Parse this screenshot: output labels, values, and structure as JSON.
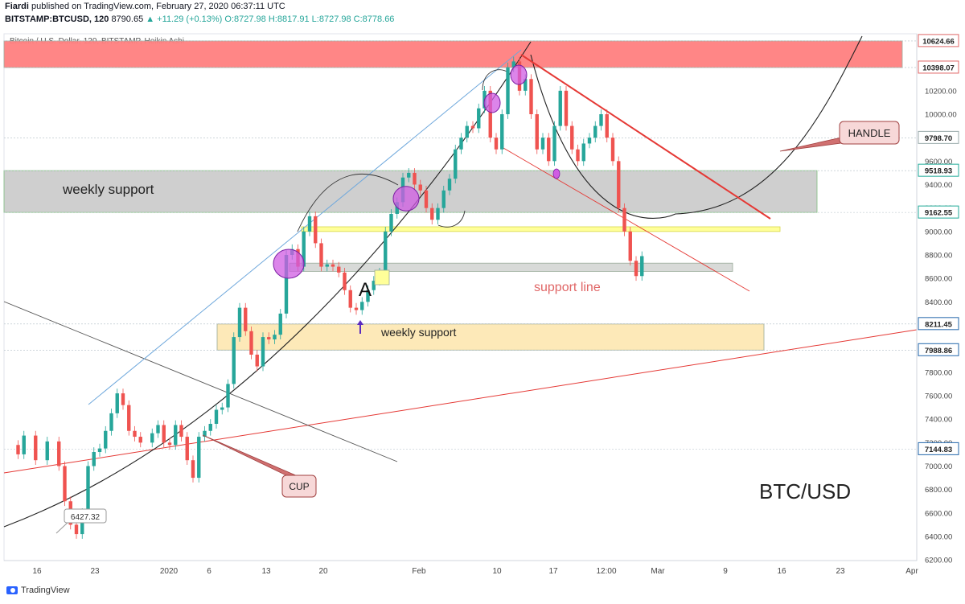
{
  "header": {
    "author": "Fiardi",
    "published": "published on TradingView.com, February 27, 2020 06:37:11 UTC",
    "symbol": "BITSTAMP:BTCUSD, 120",
    "last": "8790.65",
    "change_arrow": "▲",
    "change": "+11.29 (+0.13%)",
    "ohlc": "O:8727.98 H:8817.91 L:8727.98 C:8778.66"
  },
  "footer": {
    "brand": "TradingView"
  },
  "chart_data": {
    "type": "line",
    "series_title": "Bitcoin / U.S. Dollar, 120, BITSTAMP, Heikin Ashi",
    "x_tick_labels": [
      "16",
      "23",
      "2020",
      "6",
      "13",
      "20",
      "Feb",
      "10",
      "17",
      "12:00",
      "Mar",
      "9",
      "16",
      "23",
      "Apr"
    ],
    "y_tick_labels": [
      6200,
      6400,
      6600,
      6800,
      7000,
      7200,
      7400,
      7600,
      7800,
      8000,
      8200,
      8400,
      8600,
      8800,
      9000,
      9200,
      9400,
      9600,
      9800,
      10000,
      10200,
      10400,
      10600
    ],
    "price_labels": [
      {
        "value": "10624.66",
        "color": "#e06666"
      },
      {
        "value": "10398.07",
        "color": "#e06666"
      },
      {
        "value": "9798.70",
        "color": "#9aa"
      },
      {
        "value": "9518.93",
        "color": "#2a9"
      },
      {
        "value": "9162.55",
        "color": "#2a9"
      },
      {
        "value": "8211.45",
        "color": "#26a"
      },
      {
        "value": "7988.86",
        "color": "#26a"
      },
      {
        "value": "7144.83",
        "color": "#26a"
      }
    ],
    "price_path": [
      [
        0,
        7180
      ],
      [
        2,
        7100
      ],
      [
        3,
        7260
      ],
      [
        5,
        7050
      ],
      [
        7,
        7210
      ],
      [
        9,
        7000
      ],
      [
        10,
        6700
      ],
      [
        11,
        6500
      ],
      [
        12,
        6420
      ],
      [
        13,
        6600
      ],
      [
        14,
        7000
      ],
      [
        15,
        7120
      ],
      [
        16,
        7150
      ],
      [
        17,
        7300
      ],
      [
        18,
        7450
      ],
      [
        19,
        7620
      ],
      [
        20,
        7520
      ],
      [
        21,
        7300
      ],
      [
        22,
        7250
      ],
      [
        23,
        7200
      ],
      [
        25,
        7280
      ],
      [
        26,
        7350
      ],
      [
        27,
        7200
      ],
      [
        28,
        7180
      ],
      [
        29,
        7350
      ],
      [
        30,
        7250
      ],
      [
        31,
        7050
      ],
      [
        32,
        6900
      ],
      [
        33,
        7250
      ],
      [
        34,
        7300
      ],
      [
        35,
        7360
      ],
      [
        36,
        7480
      ],
      [
        37,
        7500
      ],
      [
        38,
        7700
      ],
      [
        39,
        8100
      ],
      [
        40,
        8350
      ],
      [
        41,
        8150
      ],
      [
        42,
        7950
      ],
      [
        43,
        7850
      ],
      [
        44,
        8100
      ],
      [
        45,
        8080
      ],
      [
        46,
        8120
      ],
      [
        47,
        8300
      ],
      [
        48,
        8800
      ],
      [
        49,
        8850
      ],
      [
        50,
        8700
      ],
      [
        51,
        9000
      ],
      [
        52,
        9130
      ],
      [
        53,
        8900
      ],
      [
        54,
        8700
      ],
      [
        55,
        8720
      ],
      [
        56,
        8700
      ],
      [
        57,
        8650
      ],
      [
        58,
        8500
      ],
      [
        59,
        8350
      ],
      [
        60,
        8330
      ],
      [
        61,
        8400
      ],
      [
        62,
        8500
      ],
      [
        63,
        8580
      ],
      [
        64,
        8650
      ],
      [
        65,
        9000
      ],
      [
        66,
        9150
      ],
      [
        67,
        9250
      ],
      [
        68,
        9460
      ],
      [
        69,
        9500
      ],
      [
        70,
        9400
      ],
      [
        71,
        9350
      ],
      [
        72,
        9200
      ],
      [
        73,
        9100
      ],
      [
        74,
        9200
      ],
      [
        75,
        9350
      ],
      [
        76,
        9450
      ],
      [
        77,
        9700
      ],
      [
        78,
        9800
      ],
      [
        79,
        9900
      ],
      [
        80,
        9880
      ],
      [
        81,
        10050
      ],
      [
        82,
        10200
      ],
      [
        83,
        9800
      ],
      [
        84,
        9700
      ],
      [
        85,
        10000
      ],
      [
        86,
        10400
      ],
      [
        87,
        10450
      ],
      [
        88,
        10200
      ],
      [
        89,
        10300
      ],
      [
        90,
        10000
      ],
      [
        91,
        9700
      ],
      [
        92,
        9800
      ],
      [
        93,
        9600
      ],
      [
        94,
        9900
      ],
      [
        95,
        10200
      ],
      [
        96,
        9900
      ],
      [
        97,
        9700
      ],
      [
        98,
        9600
      ],
      [
        99,
        9750
      ],
      [
        100,
        9800
      ],
      [
        101,
        9900
      ],
      [
        102,
        10000
      ],
      [
        103,
        9800
      ],
      [
        104,
        9600
      ],
      [
        105,
        9200
      ],
      [
        106,
        9000
      ],
      [
        107,
        8750
      ],
      [
        108,
        8620
      ],
      [
        109,
        8790
      ]
    ],
    "zones": [
      {
        "name": "resistance-zone",
        "from": 10398.07,
        "to": 10624.66,
        "color": "#ff8080"
      },
      {
        "name": "weekly-support-upper",
        "from": 9162.55,
        "to": 9518.93,
        "color": "#cfcfcf"
      },
      {
        "name": "yellow-band",
        "from": 9000,
        "to": 9040,
        "color": "#ffff99"
      },
      {
        "name": "gray-band",
        "from": 8660,
        "to": 8730,
        "color": "#d8dad8"
      },
      {
        "name": "weekly-support-lower",
        "from": 7988.86,
        "to": 8211.45,
        "color": "#fde9b8"
      }
    ],
    "annotations": {
      "weekly_support_upper": "weekly support",
      "weekly_support_lower": "weekly support",
      "support_line": "support line",
      "point_a": "A",
      "handle": "HANDLE",
      "cup": "CUP",
      "pair": "BTC/USD",
      "low_label": "6427.32"
    },
    "colors": {
      "bull": "#26a69a",
      "bear": "#ef5350",
      "resistance": "#ff8080",
      "trend_red": "#e53935",
      "channel_blue": "#6fa8dc",
      "marker_purple": "#d05ce3"
    }
  }
}
